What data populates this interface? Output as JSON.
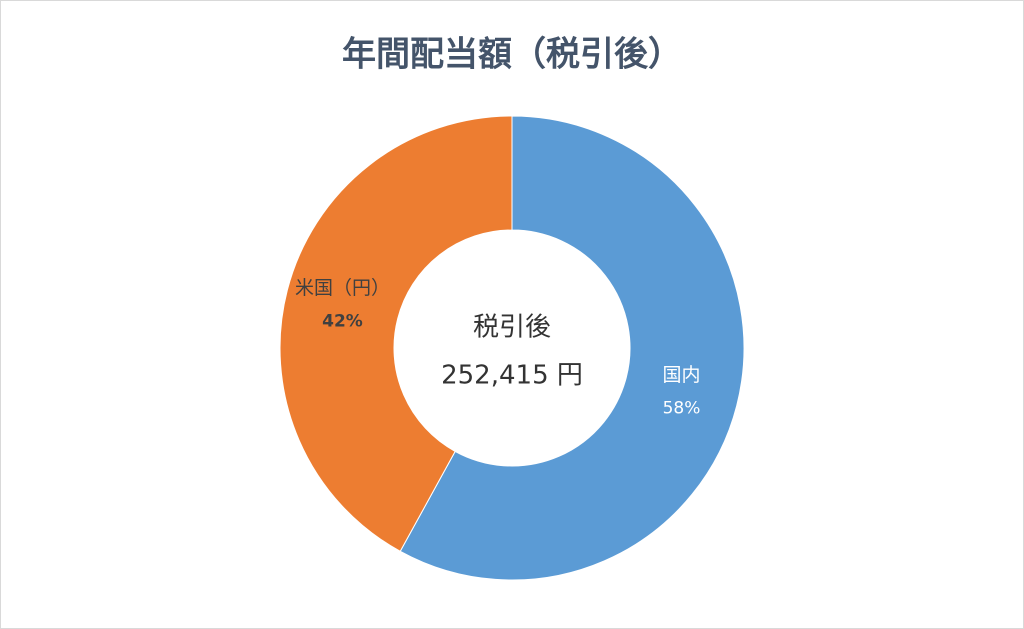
{
  "chart_data": {
    "type": "donut",
    "title": "年間配当額（税引後）",
    "categories": [
      "国内",
      "米国（円）"
    ],
    "series": [
      {
        "values": [
          58,
          42
        ],
        "value_labels": [
          "58%",
          "42%"
        ],
        "colors": [
          "#5b9bd5",
          "#ed7d31"
        ]
      }
    ],
    "center_text": [
      "税引後",
      "252,415 円"
    ]
  }
}
